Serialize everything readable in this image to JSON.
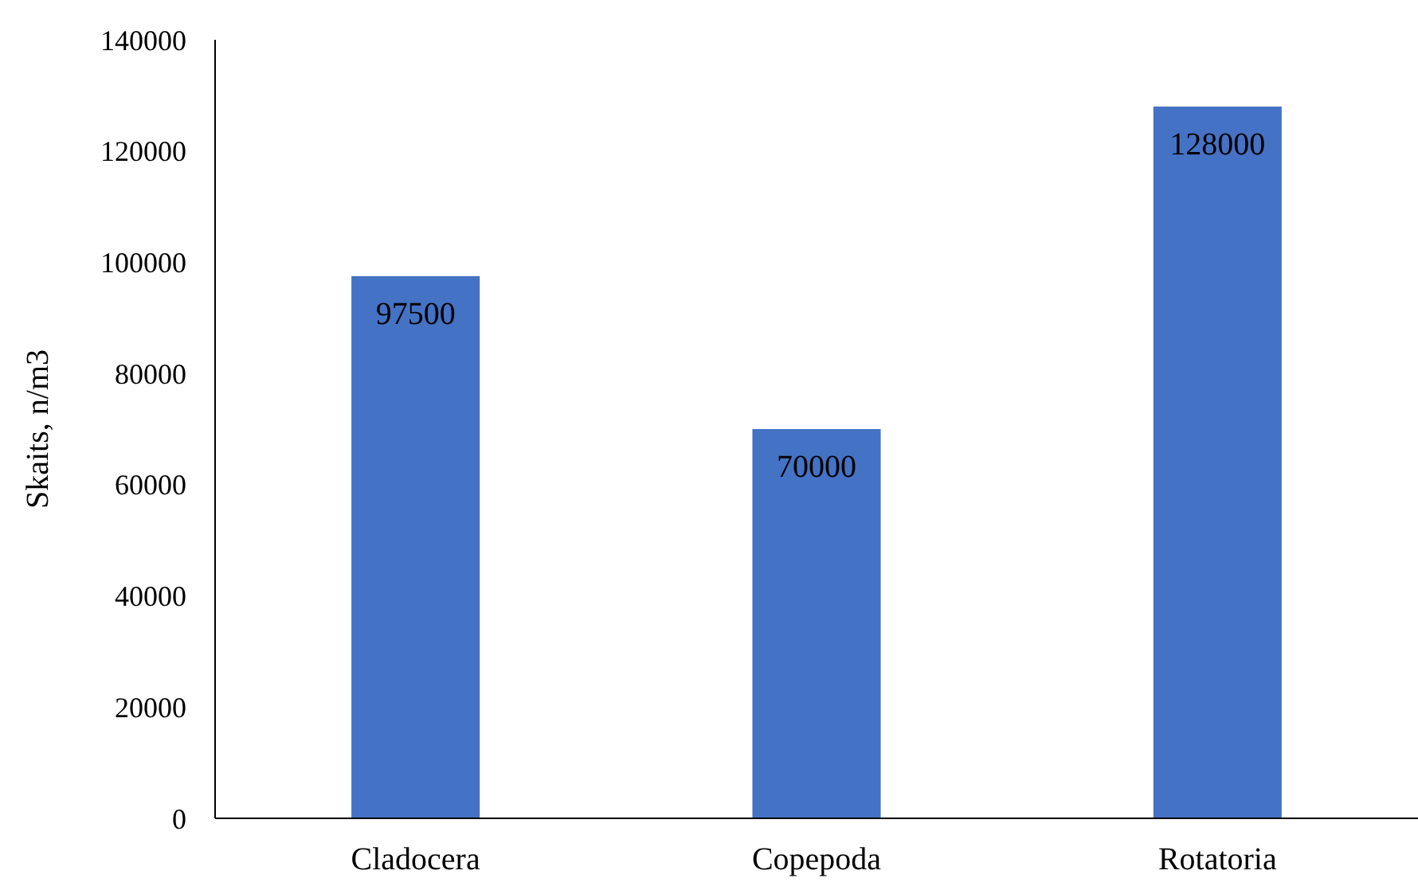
{
  "chart_data": {
    "type": "bar",
    "ylabel": "Skaits, n/m3",
    "categories": [
      "Cladocera",
      "Copepoda",
      "Rotatoria"
    ],
    "values": [
      97500,
      70000,
      128000
    ],
    "color": "#4472c4",
    "ylim": [
      0,
      140000
    ],
    "yticks": [
      0,
      20000,
      40000,
      60000,
      80000,
      100000,
      120000,
      140000
    ],
    "data_labels": true,
    "grid": false
  }
}
